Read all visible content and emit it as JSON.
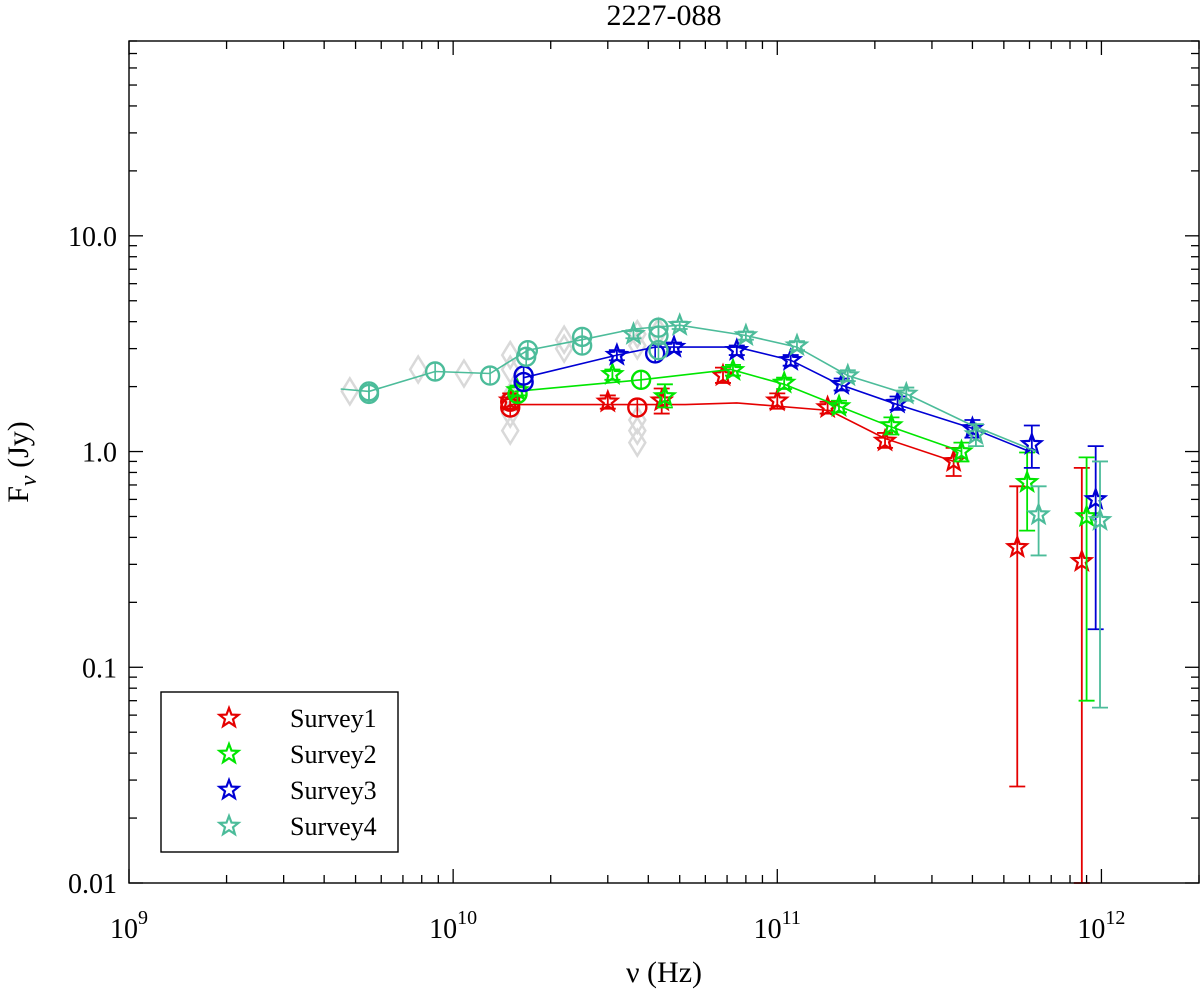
{
  "chart_data": {
    "type": "scatter",
    "title": "2227-088",
    "xlabel": "ν (Hz)",
    "ylabel_main": "F",
    "ylabel_sub": "ν",
    "ylabel_unit": " (Jy)",
    "xscale": "log",
    "yscale": "log",
    "xlim": [
      1000000000.0,
      2000000000000.0
    ],
    "ylim": [
      0.01,
      80
    ],
    "x_ticks": [
      {
        "value": 1000000000.0,
        "base": "10",
        "exp": "9"
      },
      {
        "value": 10000000000.0,
        "base": "10",
        "exp": "10"
      },
      {
        "value": 100000000000.0,
        "base": "10",
        "exp": "11"
      },
      {
        "value": 1000000000000.0,
        "base": "10",
        "exp": "12"
      }
    ],
    "y_ticks": [
      {
        "value": 0.01,
        "label": "0.01"
      },
      {
        "value": 0.1,
        "label": "0.1"
      },
      {
        "value": 1,
        "label": "1.0"
      },
      {
        "value": 10,
        "label": "10.0"
      }
    ],
    "grid": false,
    "legend_position": "bottom-left",
    "historical_color": "#d9d9d9",
    "background_points": [
      {
        "x": 4800000000.0,
        "y": 1.9
      },
      {
        "x": 7800000000.0,
        "y": 2.4
      },
      {
        "x": 10800000000.0,
        "y": 2.3
      },
      {
        "x": 15000000000.0,
        "y": 1.8
      },
      {
        "x": 15000000000.0,
        "y": 1.5
      },
      {
        "x": 15000000000.0,
        "y": 1.25
      },
      {
        "x": 15000000000.0,
        "y": 2.4
      },
      {
        "x": 15000000000.0,
        "y": 2.8
      },
      {
        "x": 22000000000.0,
        "y": 3.3
      },
      {
        "x": 22000000000.0,
        "y": 3.0
      },
      {
        "x": 37000000000.0,
        "y": 3.1
      },
      {
        "x": 37000000000.0,
        "y": 3.5
      },
      {
        "x": 37000000000.0,
        "y": 1.4
      },
      {
        "x": 37000000000.0,
        "y": 1.25
      },
      {
        "x": 37000000000.0,
        "y": 1.1
      },
      {
        "x": 43000000000.0,
        "y": 3.6
      }
    ],
    "series": [
      {
        "name": "Survey1",
        "color": "#e50000",
        "line": [
          [
            15000000000.0,
            1.65
          ],
          [
            37000000000.0,
            1.65
          ],
          [
            52000000000.0,
            1.65
          ],
          [
            75000000000.0,
            1.68
          ],
          [
            145000000000.0,
            1.55
          ],
          [
            215000000000.0,
            1.15
          ],
          [
            350000000000.0,
            0.9
          ]
        ],
        "circles": [
          {
            "x": 15000000000.0,
            "y": 1.6
          },
          {
            "x": 15000000000.0,
            "y": 1.7
          },
          {
            "x": 37000000000.0,
            "y": 1.6
          }
        ],
        "stars": [
          {
            "x": 15000000000.0,
            "y": 1.72,
            "lo": 1.58,
            "hi": 1.86
          },
          {
            "x": 30000000000.0,
            "y": 1.7,
            "lo": 1.58,
            "hi": 1.82
          },
          {
            "x": 44000000000.0,
            "y": 1.72,
            "lo": 1.5,
            "hi": 1.96
          },
          {
            "x": 68000000000.0,
            "y": 2.25,
            "lo": 2.08,
            "hi": 2.45
          },
          {
            "x": 100000000000.0,
            "y": 1.72,
            "lo": 1.58,
            "hi": 1.86
          },
          {
            "x": 143000000000.0,
            "y": 1.6,
            "lo": 1.5,
            "hi": 1.7
          },
          {
            "x": 215000000000.0,
            "y": 1.12,
            "lo": 1.04,
            "hi": 1.22
          },
          {
            "x": 350000000000.0,
            "y": 0.9,
            "lo": 0.77,
            "hi": 1.04
          },
          {
            "x": 550000000000.0,
            "y": 0.36,
            "lo": 0.028,
            "hi": 0.69
          },
          {
            "x": 870000000000.0,
            "y": 0.31,
            "lo": 0.01,
            "hi": 0.84
          }
        ]
      },
      {
        "name": "Survey2",
        "color": "#00e600",
        "line": [
          [
            15500000000.0,
            1.9
          ],
          [
            38000000000.0,
            2.15
          ],
          [
            72000000000.0,
            2.4
          ],
          [
            105000000000.0,
            2.05
          ],
          [
            155000000000.0,
            1.62
          ],
          [
            225000000000.0,
            1.3
          ],
          [
            370000000000.0,
            1.0
          ]
        ],
        "circles": [
          {
            "x": 15800000000.0,
            "y": 1.85
          },
          {
            "x": 38000000000.0,
            "y": 2.15
          }
        ],
        "stars": [
          {
            "x": 15800000000.0,
            "y": 1.92,
            "lo": 1.82,
            "hi": 2.02
          },
          {
            "x": 31000000000.0,
            "y": 2.28,
            "lo": 2.15,
            "hi": 2.4
          },
          {
            "x": 45000000000.0,
            "y": 1.8,
            "lo": 1.6,
            "hi": 2.05
          },
          {
            "x": 73000000000.0,
            "y": 2.38,
            "lo": 2.25,
            "hi": 2.52
          },
          {
            "x": 105000000000.0,
            "y": 2.08,
            "lo": 1.95,
            "hi": 2.2
          },
          {
            "x": 155000000000.0,
            "y": 1.62,
            "lo": 1.52,
            "hi": 1.72
          },
          {
            "x": 225000000000.0,
            "y": 1.32,
            "lo": 1.2,
            "hi": 1.44
          },
          {
            "x": 370000000000.0,
            "y": 1.0,
            "lo": 0.9,
            "hi": 1.1
          },
          {
            "x": 590000000000.0,
            "y": 0.72,
            "lo": 0.43,
            "hi": 0.99
          },
          {
            "x": 900000000000.0,
            "y": 0.5,
            "lo": 0.07,
            "hi": 0.94
          }
        ]
      },
      {
        "name": "Survey3",
        "color": "#0000d4",
        "line": [
          [
            16500000000.0,
            2.2
          ],
          [
            32000000000.0,
            2.8
          ],
          [
            42000000000.0,
            3.05
          ],
          [
            75000000000.0,
            3.05
          ],
          [
            110000000000.0,
            2.65
          ],
          [
            155000000000.0,
            2.05
          ],
          [
            235000000000.0,
            1.65
          ],
          [
            400000000000.0,
            1.28
          ],
          [
            600000000000.0,
            1.0
          ]
        ],
        "circles": [
          {
            "x": 16500000000.0,
            "y": 2.1
          },
          {
            "x": 16500000000.0,
            "y": 2.25
          },
          {
            "x": 42000000000.0,
            "y": 2.85
          }
        ],
        "stars": [
          {
            "x": 32000000000.0,
            "y": 2.8,
            "lo": 2.65,
            "hi": 2.95
          },
          {
            "x": 48000000000.0,
            "y": 3.05,
            "lo": 2.9,
            "hi": 3.2
          },
          {
            "x": 75000000000.0,
            "y": 2.95,
            "lo": 2.8,
            "hi": 3.1
          },
          {
            "x": 110000000000.0,
            "y": 2.65,
            "lo": 2.5,
            "hi": 2.8
          },
          {
            "x": 158000000000.0,
            "y": 2.05,
            "lo": 1.92,
            "hi": 2.18
          },
          {
            "x": 235000000000.0,
            "y": 1.68,
            "lo": 1.56,
            "hi": 1.8
          },
          {
            "x": 400000000000.0,
            "y": 1.28,
            "lo": 1.16,
            "hi": 1.4
          },
          {
            "x": 610000000000.0,
            "y": 1.08,
            "lo": 0.84,
            "hi": 1.32
          },
          {
            "x": 960000000000.0,
            "y": 0.6,
            "lo": 0.15,
            "hi": 1.06
          }
        ]
      },
      {
        "name": "Survey4",
        "color": "#4cbc9a",
        "line": [
          [
            4500000000.0,
            1.95
          ],
          [
            5500000000.0,
            1.9
          ],
          [
            8800000000.0,
            2.35
          ],
          [
            13000000000.0,
            2.3
          ],
          [
            17000000000.0,
            2.95
          ],
          [
            25000000000.0,
            3.3
          ],
          [
            36000000000.0,
            3.7
          ],
          [
            50000000000.0,
            3.85
          ],
          [
            80000000000.0,
            3.45
          ],
          [
            115000000000.0,
            3.05
          ],
          [
            165000000000.0,
            2.25
          ],
          [
            250000000000.0,
            1.85
          ],
          [
            400000000000.0,
            1.32
          ],
          [
            630000000000.0,
            1.0
          ]
        ],
        "circles": [
          {
            "x": 5500000000.0,
            "y": 1.85
          },
          {
            "x": 5500000000.0,
            "y": 1.9
          },
          {
            "x": 8800000000.0,
            "y": 2.35
          },
          {
            "x": 13000000000.0,
            "y": 2.25
          },
          {
            "x": 17000000000.0,
            "y": 2.95
          },
          {
            "x": 16800000000.0,
            "y": 2.75
          },
          {
            "x": 25000000000.0,
            "y": 3.1
          },
          {
            "x": 25000000000.0,
            "y": 3.4
          },
          {
            "x": 43000000000.0,
            "y": 3.75
          },
          {
            "x": 43000000000.0,
            "y": 3.45
          },
          {
            "x": 43000000000.0,
            "y": 2.95
          }
        ],
        "stars": [
          {
            "x": 36000000000.0,
            "y": 3.5,
            "lo": 3.35,
            "hi": 3.65
          },
          {
            "x": 50000000000.0,
            "y": 3.85,
            "lo": 3.7,
            "hi": 4.0
          },
          {
            "x": 80000000000.0,
            "y": 3.45,
            "lo": 3.3,
            "hi": 3.6
          },
          {
            "x": 115000000000.0,
            "y": 3.1,
            "lo": 2.95,
            "hi": 3.25
          },
          {
            "x": 165000000000.0,
            "y": 2.25,
            "lo": 2.12,
            "hi": 2.38
          },
          {
            "x": 250000000000.0,
            "y": 1.85,
            "lo": 1.72,
            "hi": 1.98
          },
          {
            "x": 410000000000.0,
            "y": 1.2,
            "lo": 1.06,
            "hi": 1.34
          },
          {
            "x": 640000000000.0,
            "y": 0.51,
            "lo": 0.33,
            "hi": 0.69
          },
          {
            "x": 990000000000.0,
            "y": 0.48,
            "lo": 0.065,
            "hi": 0.9
          }
        ]
      }
    ]
  }
}
